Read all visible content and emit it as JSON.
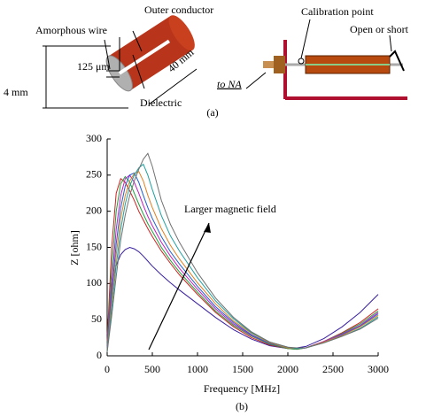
{
  "figure_a": {
    "labels": {
      "outer_conductor": "Outer conductor",
      "amorphous_wire": "Amorphous wire",
      "wire_diameter": "125 μm",
      "diameter": "4 mm",
      "length": "40 mm",
      "dielectric": "Dielectric",
      "calibration_point": "Calibration point",
      "open_or_short": "Open or short",
      "to_na": "to NA"
    },
    "caption": "(a)"
  },
  "chart_data": {
    "type": "line",
    "xlabel": "Frequency [MHz]",
    "ylabel": "Z [ohm]",
    "annotation": "Larger magnetic field",
    "caption": "(b)",
    "x": [
      0,
      50,
      100,
      150,
      200,
      250,
      300,
      350,
      400,
      450,
      500,
      600,
      700,
      800,
      1000,
      1200,
      1400,
      1600,
      1800,
      2000,
      2100,
      2200,
      2400,
      2600,
      2800,
      3000
    ],
    "series": [
      {
        "color": "#3a1fa0",
        "values": [
          30,
          95,
          125,
          140,
          147,
          150,
          148,
          144,
          138,
          131,
          124,
          112,
          101,
          91,
          72,
          53,
          36,
          23,
          14,
          10,
          11,
          13,
          24,
          40,
          60,
          85
        ]
      },
      {
        "color": "#d02020",
        "values": [
          20,
          150,
          225,
          245,
          240,
          228,
          215,
          200,
          188,
          176,
          165,
          145,
          128,
          112,
          85,
          60,
          40,
          25,
          15,
          10,
          9,
          11,
          20,
          32,
          46,
          65
        ]
      },
      {
        "color": "#20a040",
        "values": [
          15,
          120,
          200,
          238,
          248,
          240,
          225,
          210,
          196,
          183,
          172,
          150,
          132,
          116,
          88,
          62,
          42,
          27,
          16,
          10,
          9,
          11,
          20,
          31,
          44,
          62
        ]
      },
      {
        "color": "#c020c0",
        "values": [
          12,
          100,
          175,
          222,
          245,
          250,
          240,
          225,
          208,
          193,
          180,
          157,
          138,
          121,
          92,
          65,
          44,
          28,
          17,
          11,
          10,
          11,
          20,
          30,
          42,
          60
        ]
      },
      {
        "color": "#2060d0",
        "values": [
          10,
          85,
          155,
          205,
          235,
          250,
          253,
          240,
          222,
          205,
          190,
          165,
          144,
          127,
          96,
          68,
          46,
          29,
          17,
          11,
          10,
          11,
          19,
          29,
          41,
          58
        ]
      },
      {
        "color": "#e08020",
        "values": [
          8,
          75,
          140,
          190,
          222,
          242,
          252,
          255,
          242,
          222,
          205,
          176,
          153,
          134,
          101,
          72,
          48,
          31,
          18,
          11,
          10,
          11,
          19,
          28,
          40,
          56
        ]
      },
      {
        "color": "#20a0a0",
        "values": [
          6,
          65,
          125,
          175,
          210,
          235,
          250,
          260,
          265,
          250,
          230,
          194,
          166,
          145,
          108,
          76,
          51,
          32,
          19,
          12,
          10,
          11,
          18,
          27,
          38,
          54
        ]
      },
      {
        "color": "#707070",
        "values": [
          5,
          55,
          110,
          160,
          195,
          222,
          242,
          258,
          272,
          280,
          262,
          215,
          182,
          157,
          115,
          80,
          53,
          33,
          19,
          12,
          11,
          11,
          18,
          27,
          37,
          52
        ]
      }
    ],
    "xlim": [
      0,
      3000
    ],
    "xticks": [
      0,
      500,
      1000,
      1500,
      2000,
      2500,
      3000
    ],
    "ylim": [
      0,
      300
    ],
    "yticks": [
      0,
      50,
      100,
      150,
      200,
      250,
      300
    ]
  }
}
